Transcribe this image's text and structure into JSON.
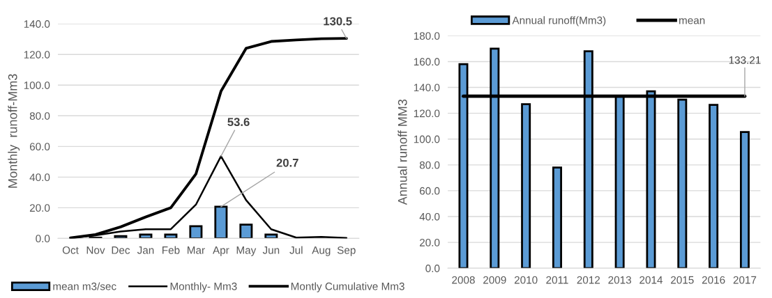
{
  "chart_data": [
    {
      "type": "bar",
      "ylabel": "Monthly  runoff-Mm3",
      "categories": [
        "Oct",
        "Nov",
        "Dec",
        "Jan",
        "Feb",
        "Mar",
        "Apr",
        "May",
        "Jun",
        "Jul",
        "Aug",
        "Sep"
      ],
      "ylim": [
        0,
        140
      ],
      "yticks": [
        {
          "value": 0,
          "label": "0.0"
        },
        {
          "value": 20,
          "label": "20.0"
        },
        {
          "value": 40,
          "label": "40.0"
        },
        {
          "value": 60,
          "label": "60.0"
        },
        {
          "value": 80,
          "label": "80.0"
        },
        {
          "value": 100,
          "label": "100.0"
        },
        {
          "value": 120,
          "label": "120.0"
        },
        {
          "value": 140,
          "label": "140.0"
        }
      ],
      "grid": "y",
      "legend": "bottom",
      "series": [
        {
          "name": "mean m3/sec",
          "color": "#5b9bd5",
          "values": [
            null,
            0.5,
            1.5,
            2.5,
            2.5,
            8,
            20.7,
            9,
            2.5,
            null,
            null,
            null
          ],
          "value_labels": [
            null,
            null,
            null,
            null,
            null,
            null,
            "20.7",
            null,
            null,
            null,
            null,
            null
          ]
        },
        {
          "name": "Monthly- Mm3",
          "type": "line",
          "color": "#000000",
          "values": [
            0.3,
            2,
            4.5,
            6,
            6,
            22,
            53.6,
            25,
            6,
            0.5,
            1,
            0.3
          ],
          "value_labels": [
            null,
            null,
            null,
            null,
            null,
            null,
            "53.6",
            null,
            null,
            null,
            null,
            null
          ]
        },
        {
          "name": "Montly Cumulative Mm3",
          "type": "line",
          "color": "#000000",
          "values": [
            0.3,
            2.5,
            7.5,
            14,
            20,
            42,
            96,
            124,
            128.5,
            129.5,
            130.3,
            130.5
          ],
          "value_labels": [
            null,
            null,
            null,
            null,
            null,
            null,
            null,
            null,
            null,
            null,
            null,
            "130.5"
          ]
        }
      ]
    },
    {
      "type": "bar",
      "ylabel": "Annual runoff MM3",
      "categories": [
        "2008",
        "2009",
        "2010",
        "2011",
        "2012",
        "2013",
        "2014",
        "2015",
        "2016",
        "2017"
      ],
      "ylim": [
        0,
        180
      ],
      "yticks": [
        {
          "value": 0,
          "label": "0.0"
        },
        {
          "value": 20,
          "label": "20.0"
        },
        {
          "value": 40,
          "label": "40.0"
        },
        {
          "value": 60,
          "label": "60.0"
        },
        {
          "value": 80,
          "label": "80.0"
        },
        {
          "value": 100,
          "label": "100.0"
        },
        {
          "value": 120,
          "label": "120.0"
        },
        {
          "value": 140,
          "label": "140.0"
        },
        {
          "value": 160,
          "label": "160.0"
        },
        {
          "value": 180,
          "label": "180.0"
        }
      ],
      "grid": "y",
      "legend": "top",
      "series": [
        {
          "name": "Annual runoff(Mm3)",
          "color": "#5b9bd5",
          "values": [
            158,
            170,
            127,
            78,
            168,
            133,
            137,
            130.5,
            126.5,
            105.5
          ]
        },
        {
          "name": "mean",
          "type": "line",
          "color": "#000000",
          "values": [
            133.21,
            133.21,
            133.21,
            133.21,
            133.21,
            133.21,
            133.21,
            133.21,
            133.21,
            133.21
          ],
          "value_labels": [
            null,
            null,
            null,
            null,
            null,
            null,
            null,
            null,
            null,
            "133.21"
          ]
        }
      ]
    }
  ]
}
